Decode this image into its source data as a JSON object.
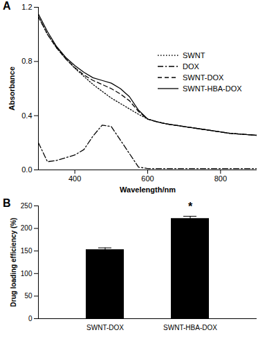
{
  "chart_data": [
    {
      "type": "line",
      "title": "A",
      "x_label": "Wavelength/nm",
      "y_label": "Absorbance",
      "x": [
        300,
        325,
        350,
        375,
        400,
        425,
        450,
        475,
        500,
        525,
        550,
        575,
        600,
        625,
        650,
        675,
        700,
        725,
        750,
        775,
        800,
        825,
        850,
        875,
        900
      ],
      "xlim": [
        300,
        900
      ],
      "xticks": [
        400,
        600,
        800
      ],
      "ylim": [
        0,
        1.2
      ],
      "yticks": [
        {
          "value": 0,
          "label": "0.0"
        },
        0.4,
        0.8,
        1.2
      ],
      "legend": "upper right",
      "series": [
        {
          "name": "SWNT",
          "color": "#000000",
          "line_style": "dotted",
          "values": [
            1.13,
            1.0,
            0.9,
            0.82,
            0.75,
            0.69,
            0.63,
            0.58,
            0.53,
            0.49,
            0.45,
            0.41,
            0.375,
            0.355,
            0.34,
            0.33,
            0.32,
            0.31,
            0.3,
            0.29,
            0.28,
            0.27,
            0.265,
            0.26,
            0.255
          ]
        },
        {
          "name": "DOX",
          "color": "#000000",
          "line_style": "dashdot",
          "values": [
            0.2,
            0.06,
            0.07,
            0.09,
            0.11,
            0.15,
            0.25,
            0.33,
            0.32,
            0.22,
            0.12,
            0.02,
            0.01,
            0.01,
            0.01,
            0.01,
            0.01,
            0.01,
            0.01,
            0.01,
            0.01,
            0.01,
            0.01,
            0.01,
            0.01
          ]
        },
        {
          "name": "SWNT-DOX",
          "color": "#000000",
          "line_style": "dashed",
          "values": [
            1.13,
            1.0,
            0.9,
            0.82,
            0.755,
            0.7,
            0.66,
            0.63,
            0.6,
            0.56,
            0.51,
            0.43,
            0.375,
            0.355,
            0.34,
            0.33,
            0.32,
            0.31,
            0.3,
            0.29,
            0.28,
            0.27,
            0.265,
            0.26,
            0.255
          ]
        },
        {
          "name": "SWNT-HBA-DOX",
          "color": "#000000",
          "line_style": "solid",
          "values": [
            1.15,
            1.02,
            0.91,
            0.83,
            0.77,
            0.72,
            0.68,
            0.66,
            0.64,
            0.6,
            0.54,
            0.44,
            0.375,
            0.355,
            0.34,
            0.33,
            0.32,
            0.31,
            0.3,
            0.29,
            0.28,
            0.27,
            0.265,
            0.26,
            0.255
          ]
        }
      ]
    },
    {
      "type": "bar",
      "title": "B",
      "y_label": "Drug loading efficiency (%)",
      "categories": [
        "SWNT-DOX",
        "SWNT-HBA-DOX"
      ],
      "values": [
        153,
        222
      ],
      "errors": [
        4,
        5
      ],
      "color": "#000000",
      "ylim": [
        0,
        250
      ],
      "yticks": [
        0,
        50,
        100,
        150,
        200,
        250
      ],
      "annotations": [
        {
          "category": "SWNT-HBA-DOX",
          "text": "*"
        }
      ]
    }
  ]
}
